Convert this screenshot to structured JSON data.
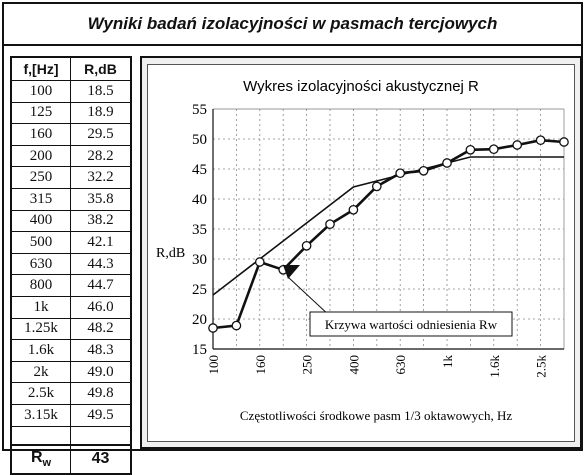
{
  "header": {
    "title": "Wyniki badań izolacyjności w pasmach tercjowych"
  },
  "table": {
    "col_freq": "f,[Hz]",
    "col_r": "R,dB",
    "rows": [
      {
        "f": "100",
        "r": "18.5"
      },
      {
        "f": "125",
        "r": "18.9"
      },
      {
        "f": "160",
        "r": "29.5"
      },
      {
        "f": "200",
        "r": "28.2"
      },
      {
        "f": "250",
        "r": "32.2"
      },
      {
        "f": "315",
        "r": "35.8"
      },
      {
        "f": "400",
        "r": "38.2"
      },
      {
        "f": "500",
        "r": "42.1"
      },
      {
        "f": "630",
        "r": "44.3"
      },
      {
        "f": "800",
        "r": "44.7"
      },
      {
        "f": "1k",
        "r": "46.0"
      },
      {
        "f": "1.25k",
        "r": "48.2"
      },
      {
        "f": "1.6k",
        "r": "48.3"
      },
      {
        "f": "2k",
        "r": "49.0"
      },
      {
        "f": "2.5k",
        "r": "49.8"
      },
      {
        "f": "3.15k",
        "r": "49.5"
      }
    ],
    "rw_label": "R",
    "rw_sub": "w",
    "rw_value": "43"
  },
  "chart_data": {
    "type": "line",
    "title": "Wykres izolacyjności akustycznej R",
    "xlabel": "Częstotliwości środkowe pasm 1/3 oktawowych, Hz",
    "ylabel": "R,dB",
    "categories": [
      "100",
      "125",
      "160",
      "200",
      "250",
      "315",
      "400",
      "500",
      "630",
      "800",
      "1k",
      "1.25k",
      "1.6k",
      "2k",
      "2.5k",
      "3.15k"
    ],
    "x_tick_labels": [
      "100",
      "160",
      "250",
      "400",
      "630",
      "1k",
      "1.6k",
      "2.5k"
    ],
    "ylim": [
      15,
      55
    ],
    "y_ticks": [
      15,
      20,
      25,
      30,
      35,
      40,
      45,
      50,
      55
    ],
    "grid": true,
    "series": [
      {
        "values": [
          18.5,
          18.9,
          29.5,
          28.2,
          32.2,
          35.8,
          38.2,
          42.1,
          44.3,
          44.7,
          46.0,
          48.2,
          48.3,
          49.0,
          49.8,
          49.5
        ]
      },
      {
        "values": [
          24,
          27,
          30,
          33,
          36,
          39,
          42,
          43,
          44,
          45,
          46,
          47,
          47,
          47,
          47,
          47
        ]
      }
    ],
    "annotation": "Krzywa wartości odniesienia Rw"
  }
}
